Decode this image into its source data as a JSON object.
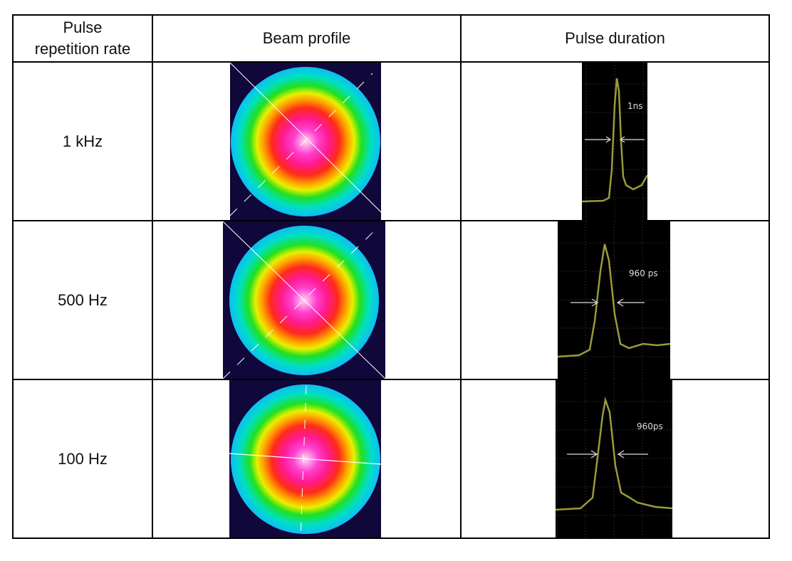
{
  "headers": [
    "Pulse repetition rate",
    "Beam profile",
    "Pulse duration"
  ],
  "header_lines": [
    "Pulse",
    "repetition rate"
  ],
  "rows": [
    {
      "rate": "1 kHz",
      "duration_label": "1ns"
    },
    {
      "rate": "500 Hz",
      "duration_label": "960 ps"
    },
    {
      "rate": "100 Hz",
      "duration_label": "960ps"
    }
  ],
  "colors": {
    "trace": "#9a9a3a",
    "beam_background": "#10083a"
  }
}
